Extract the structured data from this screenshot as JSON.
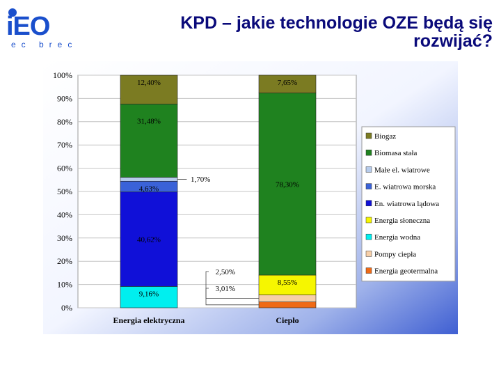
{
  "header": {
    "logo_text": "iEO",
    "logo_subtext": "ec brec",
    "title_line1": "KPD – jakie technologie OZE będą się",
    "title_line2": "rozwijać?"
  },
  "colors": {
    "Biogaz": "#7b7b22",
    "Biomasa stała": "#1f821f",
    "Małe el. wiatrowe": "#b7ccec",
    "E. wiatrowa morska": "#3a62d8",
    "En. wiatrowa lądowa": "#1010d8",
    "Energia słoneczna": "#f6f600",
    "Energia wodna": "#00efef",
    "Pompy ciepła": "#f7cfa8",
    "Energia geotermalna": "#ef6a16",
    "logo_blue": "#1a4fcc",
    "title": "#0a0a7a"
  },
  "chart_data": {
    "type": "bar",
    "stacked": true,
    "categories": [
      "Energia elektryczna",
      "Ciepło"
    ],
    "yticks": [
      "0%",
      "10%",
      "20%",
      "30%",
      "40%",
      "50%",
      "60%",
      "70%",
      "80%",
      "90%",
      "100%"
    ],
    "ylim": [
      0,
      100
    ],
    "grid": true,
    "legend": "right",
    "series": [
      {
        "name": "Energia geotermalna",
        "values": [
          0,
          2.5
        ]
      },
      {
        "name": "Pompy ciepła",
        "values": [
          0,
          3.01
        ]
      },
      {
        "name": "Energia słoneczna",
        "values": [
          0,
          8.55
        ]
      },
      {
        "name": "Energia wodna",
        "values": [
          9.16,
          0
        ]
      },
      {
        "name": "En. wiatrowa lądowa",
        "values": [
          40.62,
          0
        ]
      },
      {
        "name": "E. wiatrowa morska",
        "values": [
          4.63,
          0
        ]
      },
      {
        "name": "Małe el. wiatrowe",
        "values": [
          1.7,
          0
        ]
      },
      {
        "name": "Biomasa stała",
        "values": [
          31.48,
          78.3
        ]
      },
      {
        "name": "Biogaz",
        "values": [
          12.4,
          7.65
        ]
      }
    ],
    "data_labels": [
      {
        "series": "Energia wodna",
        "category": "Energia elektryczna",
        "text": "9,16%"
      },
      {
        "series": "En. wiatrowa lądowa",
        "category": "Energia elektryczna",
        "text": "40,62%"
      },
      {
        "series": "E. wiatrowa morska",
        "category": "Energia elektryczna",
        "text": "4,63%"
      },
      {
        "series": "Małe el. wiatrowe",
        "category": "Energia elektryczna",
        "text": "1,70%"
      },
      {
        "series": "Biomasa stała",
        "category": "Energia elektryczna",
        "text": "31,48%"
      },
      {
        "series": "Biogaz",
        "category": "Energia elektryczna",
        "text": "12,40%"
      },
      {
        "series": "Energia geotermalna",
        "category": "Ciepło",
        "text": "2,50%"
      },
      {
        "series": "Pompy ciepła",
        "category": "Ciepło",
        "text": "3,01%"
      },
      {
        "series": "Energia słoneczna",
        "category": "Ciepło",
        "text": "8,55%"
      },
      {
        "series": "Biomasa stała",
        "category": "Ciepło",
        "text": "78,30%"
      },
      {
        "series": "Biogaz",
        "category": "Ciepło",
        "text": "7,65%"
      }
    ],
    "legend_entries": [
      "Biogaz",
      "Biomasa stała",
      "Małe el. wiatrowe",
      "E. wiatrowa morska",
      "En. wiatrowa lądowa",
      "Energia słoneczna",
      "Energia wodna",
      "Pompy ciepła",
      "Energia geotermalna"
    ]
  }
}
